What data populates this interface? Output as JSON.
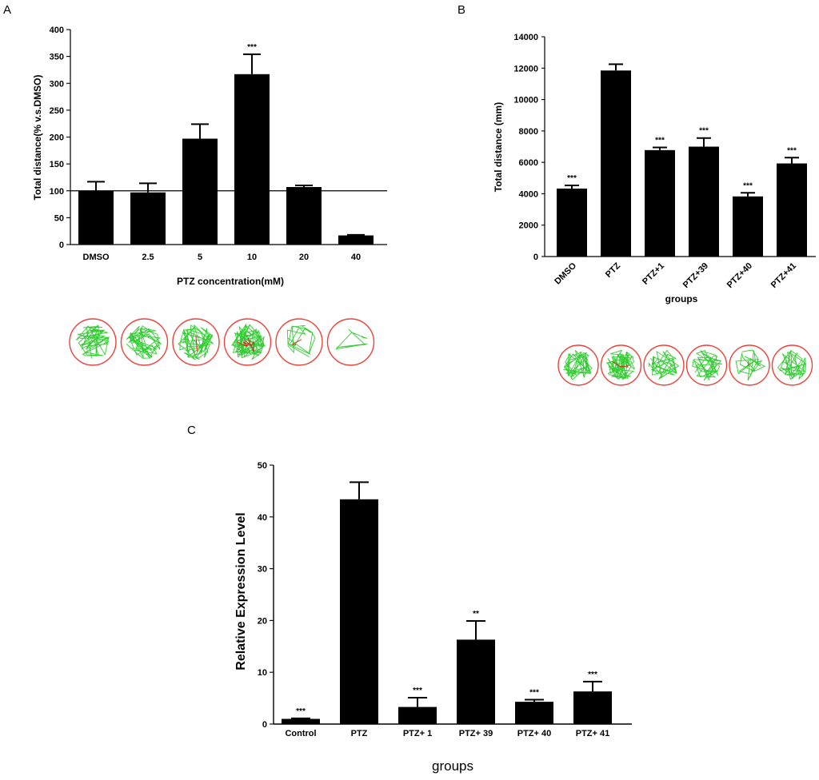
{
  "panels": [
    {
      "letter": "A",
      "chart_data": {
        "type": "bar",
        "title": "",
        "xlabel": "PTZ concentration(mM)",
        "ylabel": "Total distance(% v.s.DMSO)",
        "categories": [
          "DMSO",
          "2.5",
          "5",
          "10",
          "20",
          "40"
        ],
        "values": [
          100,
          97,
          197,
          317,
          107,
          17
        ],
        "errors": [
          17,
          17,
          27,
          37,
          3,
          1
        ],
        "significance": [
          "",
          "",
          "",
          "***",
          "",
          ""
        ],
        "ylim": [
          0,
          400
        ],
        "yticks": [
          0,
          50,
          100,
          150,
          200,
          250,
          300,
          350,
          400
        ],
        "reference_line": 100,
        "rotated_xticks": false
      },
      "trajectory_wells": 6
    },
    {
      "letter": "B",
      "chart_data": {
        "type": "bar",
        "title": "",
        "xlabel": "groups",
        "ylabel": "Total distance (mm)",
        "categories": [
          "DMSO",
          "PTZ",
          "PTZ+1",
          "PTZ+39",
          "PTZ+40",
          "PTZ+41"
        ],
        "values": [
          4330,
          11850,
          6780,
          7000,
          3830,
          5930
        ],
        "errors": [
          200,
          400,
          170,
          550,
          230,
          370
        ],
        "significance": [
          "***",
          "",
          "***",
          "***",
          "***",
          "***"
        ],
        "ylim": [
          0,
          14000
        ],
        "yticks": [
          0,
          2000,
          4000,
          6000,
          8000,
          10000,
          12000,
          14000
        ],
        "rotated_xticks": true
      },
      "trajectory_wells": 6
    },
    {
      "letter": "C",
      "chart_data": {
        "type": "bar",
        "title": "",
        "xlabel": "groups",
        "ylabel": "Relative Expression Level",
        "categories": [
          "Control",
          "PTZ",
          "PTZ+ 1",
          "PTZ+ 39",
          "PTZ+ 40",
          "PTZ+ 41"
        ],
        "values": [
          1.0,
          43.4,
          3.3,
          16.3,
          4.3,
          6.3
        ],
        "errors": [
          0.1,
          3.3,
          1.8,
          3.6,
          0.4,
          1.9
        ],
        "significance": [
          "***",
          "",
          "***",
          "**",
          "***",
          "***"
        ],
        "ylim": [
          0,
          50
        ],
        "yticks": [
          0,
          10,
          20,
          30,
          40,
          50
        ],
        "rotated_xticks": false
      }
    }
  ],
  "colors": {
    "bar": "#000000",
    "well_border": "#e8443c",
    "track_green": "#33cc33",
    "track_red": "#dd2222"
  }
}
